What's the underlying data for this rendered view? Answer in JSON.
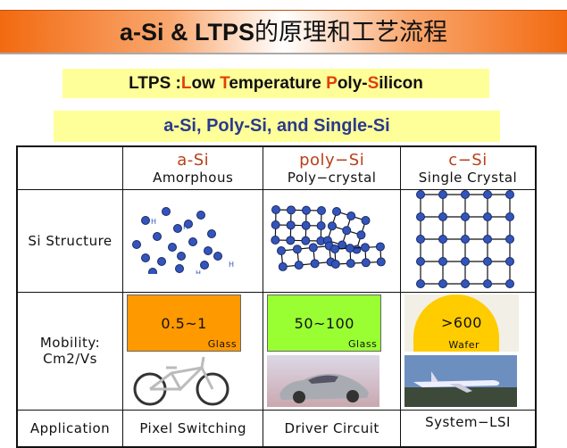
{
  "title": {
    "latin": "a-Si & LTPS",
    "cn": "的原理和工艺流程"
  },
  "ltps_box": {
    "prefix": "LTPS :",
    "parts": [
      [
        "L",
        "ow "
      ],
      [
        "T",
        "emperature "
      ],
      [
        "P",
        "oly-"
      ],
      [
        "S",
        "ilicon"
      ]
    ]
  },
  "subtitle": "a-Si, Poly-Si, and Single-Si",
  "table": {
    "columns": [
      {
        "name": "a-Si",
        "desc": "Amorphous"
      },
      {
        "name": "poly−Si",
        "desc": "Poly−crystal"
      },
      {
        "name": "c−Si",
        "desc": "Single Crystal"
      }
    ],
    "row_labels": {
      "structure": "Si Structure",
      "mobility_1": "Mobility:",
      "mobility_2": "Cm2/Vs",
      "application": "Application"
    },
    "mobility": [
      {
        "value": "0.5~1",
        "substrate": "Glass",
        "color": "#ff9900"
      },
      {
        "value": "50~100",
        "substrate": "Glass",
        "color": "#99ff33"
      },
      {
        "value": ">600",
        "substrate": "Wafer",
        "color": "#ffcc00"
      }
    ],
    "h_label": "H",
    "applications": [
      "Pixel Switching",
      "Driver Circuit",
      "System−LSI"
    ]
  }
}
